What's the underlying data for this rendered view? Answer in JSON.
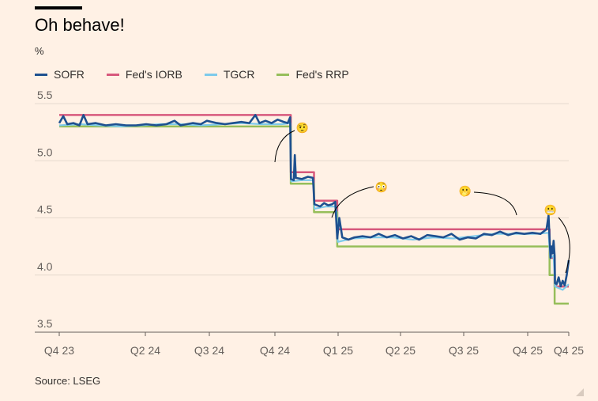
{
  "title": "Oh behave!",
  "unit_label": "%",
  "source": "Source: LSEG",
  "colors": {
    "SOFR": "#1e508f",
    "IORB": "#d7587c",
    "TGCR": "#7dcaeb",
    "RRP": "#96be5a"
  },
  "legend": [
    {
      "label": "SOFR",
      "color": "#1e508f"
    },
    {
      "label": "Fed's IORB",
      "color": "#d7587c"
    },
    {
      "label": "TGCR",
      "color": "#7dcaeb"
    },
    {
      "label": "Fed's RRP",
      "color": "#96be5a"
    }
  ],
  "chart_data": {
    "type": "line",
    "title": "Oh behave!",
    "ylabel": "%",
    "ylim": [
      3.5,
      5.5
    ],
    "yticks": [
      3.5,
      4.0,
      4.5,
      5.0,
      5.5
    ],
    "xrange_months": [
      0,
      24.4
    ],
    "xticks": [
      {
        "label": "Q4 23",
        "t": 0
      },
      {
        "label": "Q2 24",
        "t": 6
      },
      {
        "label": "Q3 24",
        "t": 9
      },
      {
        "label": "Q4 24",
        "t": 12
      },
      {
        "label": "Q1 25",
        "t": 15
      },
      {
        "label": "Q2 25",
        "t": 18
      },
      {
        "label": "Q3 25",
        "t": 21
      },
      {
        "label": "Q4 25",
        "t": 24
      },
      {
        "label": "Q4 25",
        "t": 24.7
      }
    ],
    "series": [
      {
        "name": "Fed's IORB",
        "key": "IORB",
        "step": true,
        "points": [
          [
            0,
            5.4
          ],
          [
            11.45,
            5.4
          ],
          [
            11.45,
            4.9
          ],
          [
            12.6,
            4.9
          ],
          [
            12.6,
            4.65
          ],
          [
            13.75,
            4.65
          ],
          [
            13.75,
            4.4
          ],
          [
            24.25,
            4.4
          ],
          [
            24.25,
            4.15
          ],
          [
            24.5,
            4.15
          ],
          [
            24.5,
            3.9
          ],
          [
            25.2,
            3.9
          ]
        ]
      },
      {
        "name": "Fed's RRP",
        "key": "RRP",
        "step": true,
        "points": [
          [
            0,
            5.3
          ],
          [
            11.45,
            5.3
          ],
          [
            11.45,
            4.8
          ],
          [
            12.6,
            4.8
          ],
          [
            12.6,
            4.55
          ],
          [
            13.75,
            4.55
          ],
          [
            13.75,
            4.25
          ],
          [
            24.25,
            4.25
          ],
          [
            24.25,
            4.0
          ],
          [
            24.5,
            4.0
          ],
          [
            24.5,
            3.75
          ],
          [
            25.2,
            3.75
          ]
        ]
      },
      {
        "name": "TGCR",
        "key": "TGCR",
        "points": [
          [
            0,
            5.31
          ],
          [
            1,
            5.32
          ],
          [
            2,
            5.31
          ],
          [
            3,
            5.3
          ],
          [
            4,
            5.31
          ],
          [
            5,
            5.32
          ],
          [
            6,
            5.32
          ],
          [
            7,
            5.31
          ],
          [
            8,
            5.32
          ],
          [
            9,
            5.33
          ],
          [
            10,
            5.32
          ],
          [
            11,
            5.32
          ],
          [
            11.44,
            5.33
          ],
          [
            11.47,
            4.82
          ],
          [
            12,
            4.83
          ],
          [
            12.58,
            4.83
          ],
          [
            12.62,
            4.58
          ],
          [
            13.2,
            4.6
          ],
          [
            13.7,
            4.6
          ],
          [
            13.78,
            4.29
          ],
          [
            14.5,
            4.32
          ],
          [
            15.5,
            4.33
          ],
          [
            16.5,
            4.33
          ],
          [
            17.5,
            4.31
          ],
          [
            18.5,
            4.33
          ],
          [
            19.5,
            4.32
          ],
          [
            20.5,
            4.34
          ],
          [
            21.5,
            4.36
          ],
          [
            22.5,
            4.36
          ],
          [
            23.5,
            4.36
          ],
          [
            24.2,
            4.37
          ],
          [
            24.28,
            4.15
          ],
          [
            24.45,
            4.17
          ],
          [
            24.52,
            3.9
          ],
          [
            24.9,
            3.87
          ],
          [
            25.2,
            3.92
          ]
        ]
      },
      {
        "name": "SOFR",
        "key": "SOFR",
        "points": [
          [
            0,
            5.33
          ],
          [
            0.2,
            5.39
          ],
          [
            0.4,
            5.32
          ],
          [
            0.7,
            5.33
          ],
          [
            1.0,
            5.31
          ],
          [
            1.2,
            5.4
          ],
          [
            1.4,
            5.32
          ],
          [
            1.8,
            5.33
          ],
          [
            2.3,
            5.31
          ],
          [
            2.8,
            5.32
          ],
          [
            3.3,
            5.31
          ],
          [
            3.8,
            5.31
          ],
          [
            4.3,
            5.32
          ],
          [
            4.8,
            5.31
          ],
          [
            5.3,
            5.32
          ],
          [
            5.7,
            5.35
          ],
          [
            6.0,
            5.31
          ],
          [
            6.6,
            5.33
          ],
          [
            7.0,
            5.32
          ],
          [
            7.3,
            5.35
          ],
          [
            7.8,
            5.33
          ],
          [
            8.2,
            5.32
          ],
          [
            8.6,
            5.33
          ],
          [
            9.0,
            5.34
          ],
          [
            9.4,
            5.33
          ],
          [
            9.7,
            5.4
          ],
          [
            9.9,
            5.33
          ],
          [
            10.2,
            5.35
          ],
          [
            10.5,
            5.33
          ],
          [
            10.8,
            5.36
          ],
          [
            11.1,
            5.34
          ],
          [
            11.3,
            5.33
          ],
          [
            11.42,
            5.38
          ],
          [
            11.46,
            4.84
          ],
          [
            11.6,
            4.83
          ],
          [
            11.65,
            5.05
          ],
          [
            11.7,
            4.85
          ],
          [
            12.0,
            4.84
          ],
          [
            12.3,
            4.86
          ],
          [
            12.55,
            4.85
          ],
          [
            12.62,
            4.62
          ],
          [
            12.9,
            4.6
          ],
          [
            13.1,
            4.63
          ],
          [
            13.3,
            4.61
          ],
          [
            13.5,
            4.62
          ],
          [
            13.65,
            4.64
          ],
          [
            13.75,
            4.32
          ],
          [
            13.85,
            4.5
          ],
          [
            14.0,
            4.33
          ],
          [
            14.3,
            4.31
          ],
          [
            14.6,
            4.33
          ],
          [
            15.0,
            4.34
          ],
          [
            15.4,
            4.33
          ],
          [
            15.8,
            4.36
          ],
          [
            16.2,
            4.33
          ],
          [
            16.6,
            4.35
          ],
          [
            17.0,
            4.32
          ],
          [
            17.4,
            4.34
          ],
          [
            17.8,
            4.31
          ],
          [
            18.2,
            4.35
          ],
          [
            18.6,
            4.34
          ],
          [
            19.0,
            4.33
          ],
          [
            19.4,
            4.36
          ],
          [
            19.8,
            4.31
          ],
          [
            20.2,
            4.33
          ],
          [
            20.6,
            4.32
          ],
          [
            21.0,
            4.36
          ],
          [
            21.4,
            4.35
          ],
          [
            21.8,
            4.38
          ],
          [
            22.2,
            4.35
          ],
          [
            22.6,
            4.37
          ],
          [
            23.0,
            4.36
          ],
          [
            23.4,
            4.37
          ],
          [
            23.8,
            4.36
          ],
          [
            24.1,
            4.4
          ],
          [
            24.2,
            4.52
          ],
          [
            24.25,
            4.32
          ],
          [
            24.3,
            4.15
          ],
          [
            24.35,
            4.25
          ],
          [
            24.4,
            4.19
          ],
          [
            24.45,
            4.3
          ],
          [
            24.5,
            4.17
          ],
          [
            24.52,
            3.93
          ],
          [
            24.6,
            3.92
          ],
          [
            24.7,
            3.98
          ],
          [
            24.8,
            3.9
          ],
          [
            24.9,
            3.95
          ],
          [
            25.0,
            3.91
          ],
          [
            25.1,
            4.0
          ],
          [
            25.2,
            4.13
          ]
        ]
      }
    ],
    "annotations": [
      {
        "emoji": "🤨",
        "label": "oh-behave-face-1"
      },
      {
        "emoji": "😳",
        "label": "oh-behave-face-2"
      },
      {
        "emoji": "🫢",
        "label": "oh-behave-face-3"
      },
      {
        "emoji": "😬",
        "label": "oh-behave-face-4"
      }
    ]
  }
}
